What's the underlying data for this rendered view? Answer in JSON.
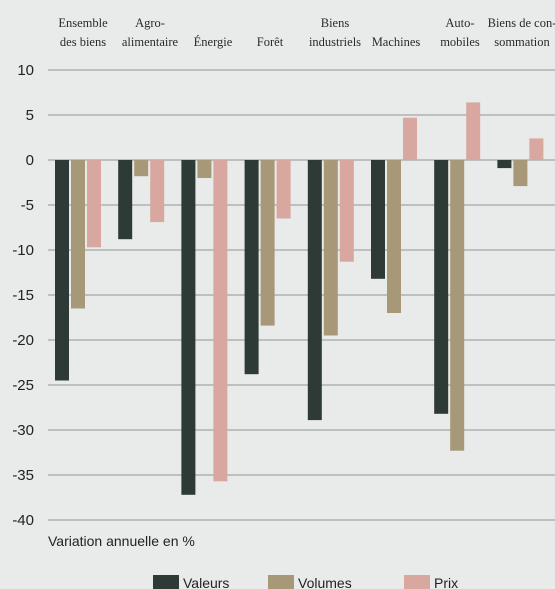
{
  "chart_data": {
    "type": "bar",
    "categories": [
      [
        "Ensemble",
        "des biens"
      ],
      [
        "Agro-",
        "alimentaire"
      ],
      [
        "Énergie"
      ],
      [
        "Forêt"
      ],
      [
        "Biens",
        "industriels"
      ],
      [
        "Machines"
      ],
      [
        "Auto-",
        "mobiles"
      ],
      [
        "Biens de con-",
        "sommation"
      ]
    ],
    "series": [
      {
        "name": "Valeurs",
        "color": "#2e3a35",
        "values": [
          -24.5,
          -8.8,
          -37.2,
          -23.8,
          -28.9,
          -13.2,
          -28.2,
          -0.9
        ]
      },
      {
        "name": "Volumes",
        "color": "#a79877",
        "values": [
          -16.5,
          -1.8,
          -2.0,
          -18.4,
          -19.5,
          -17.0,
          -32.3,
          -2.9
        ]
      },
      {
        "name": "Prix",
        "color": "#d8a79f",
        "values": [
          -9.7,
          -6.9,
          -35.7,
          -6.5,
          -11.3,
          4.7,
          6.4,
          2.4
        ]
      }
    ],
    "ylim": [
      -40,
      10
    ],
    "yticks": [
      "10",
      "5",
      "0",
      "-5",
      "-10",
      "-15",
      "-20",
      "-25",
      "-30",
      "-35",
      "-40"
    ],
    "ylabel": "Variation annuelle en %",
    "grid": true,
    "legend_position": "bottom"
  }
}
